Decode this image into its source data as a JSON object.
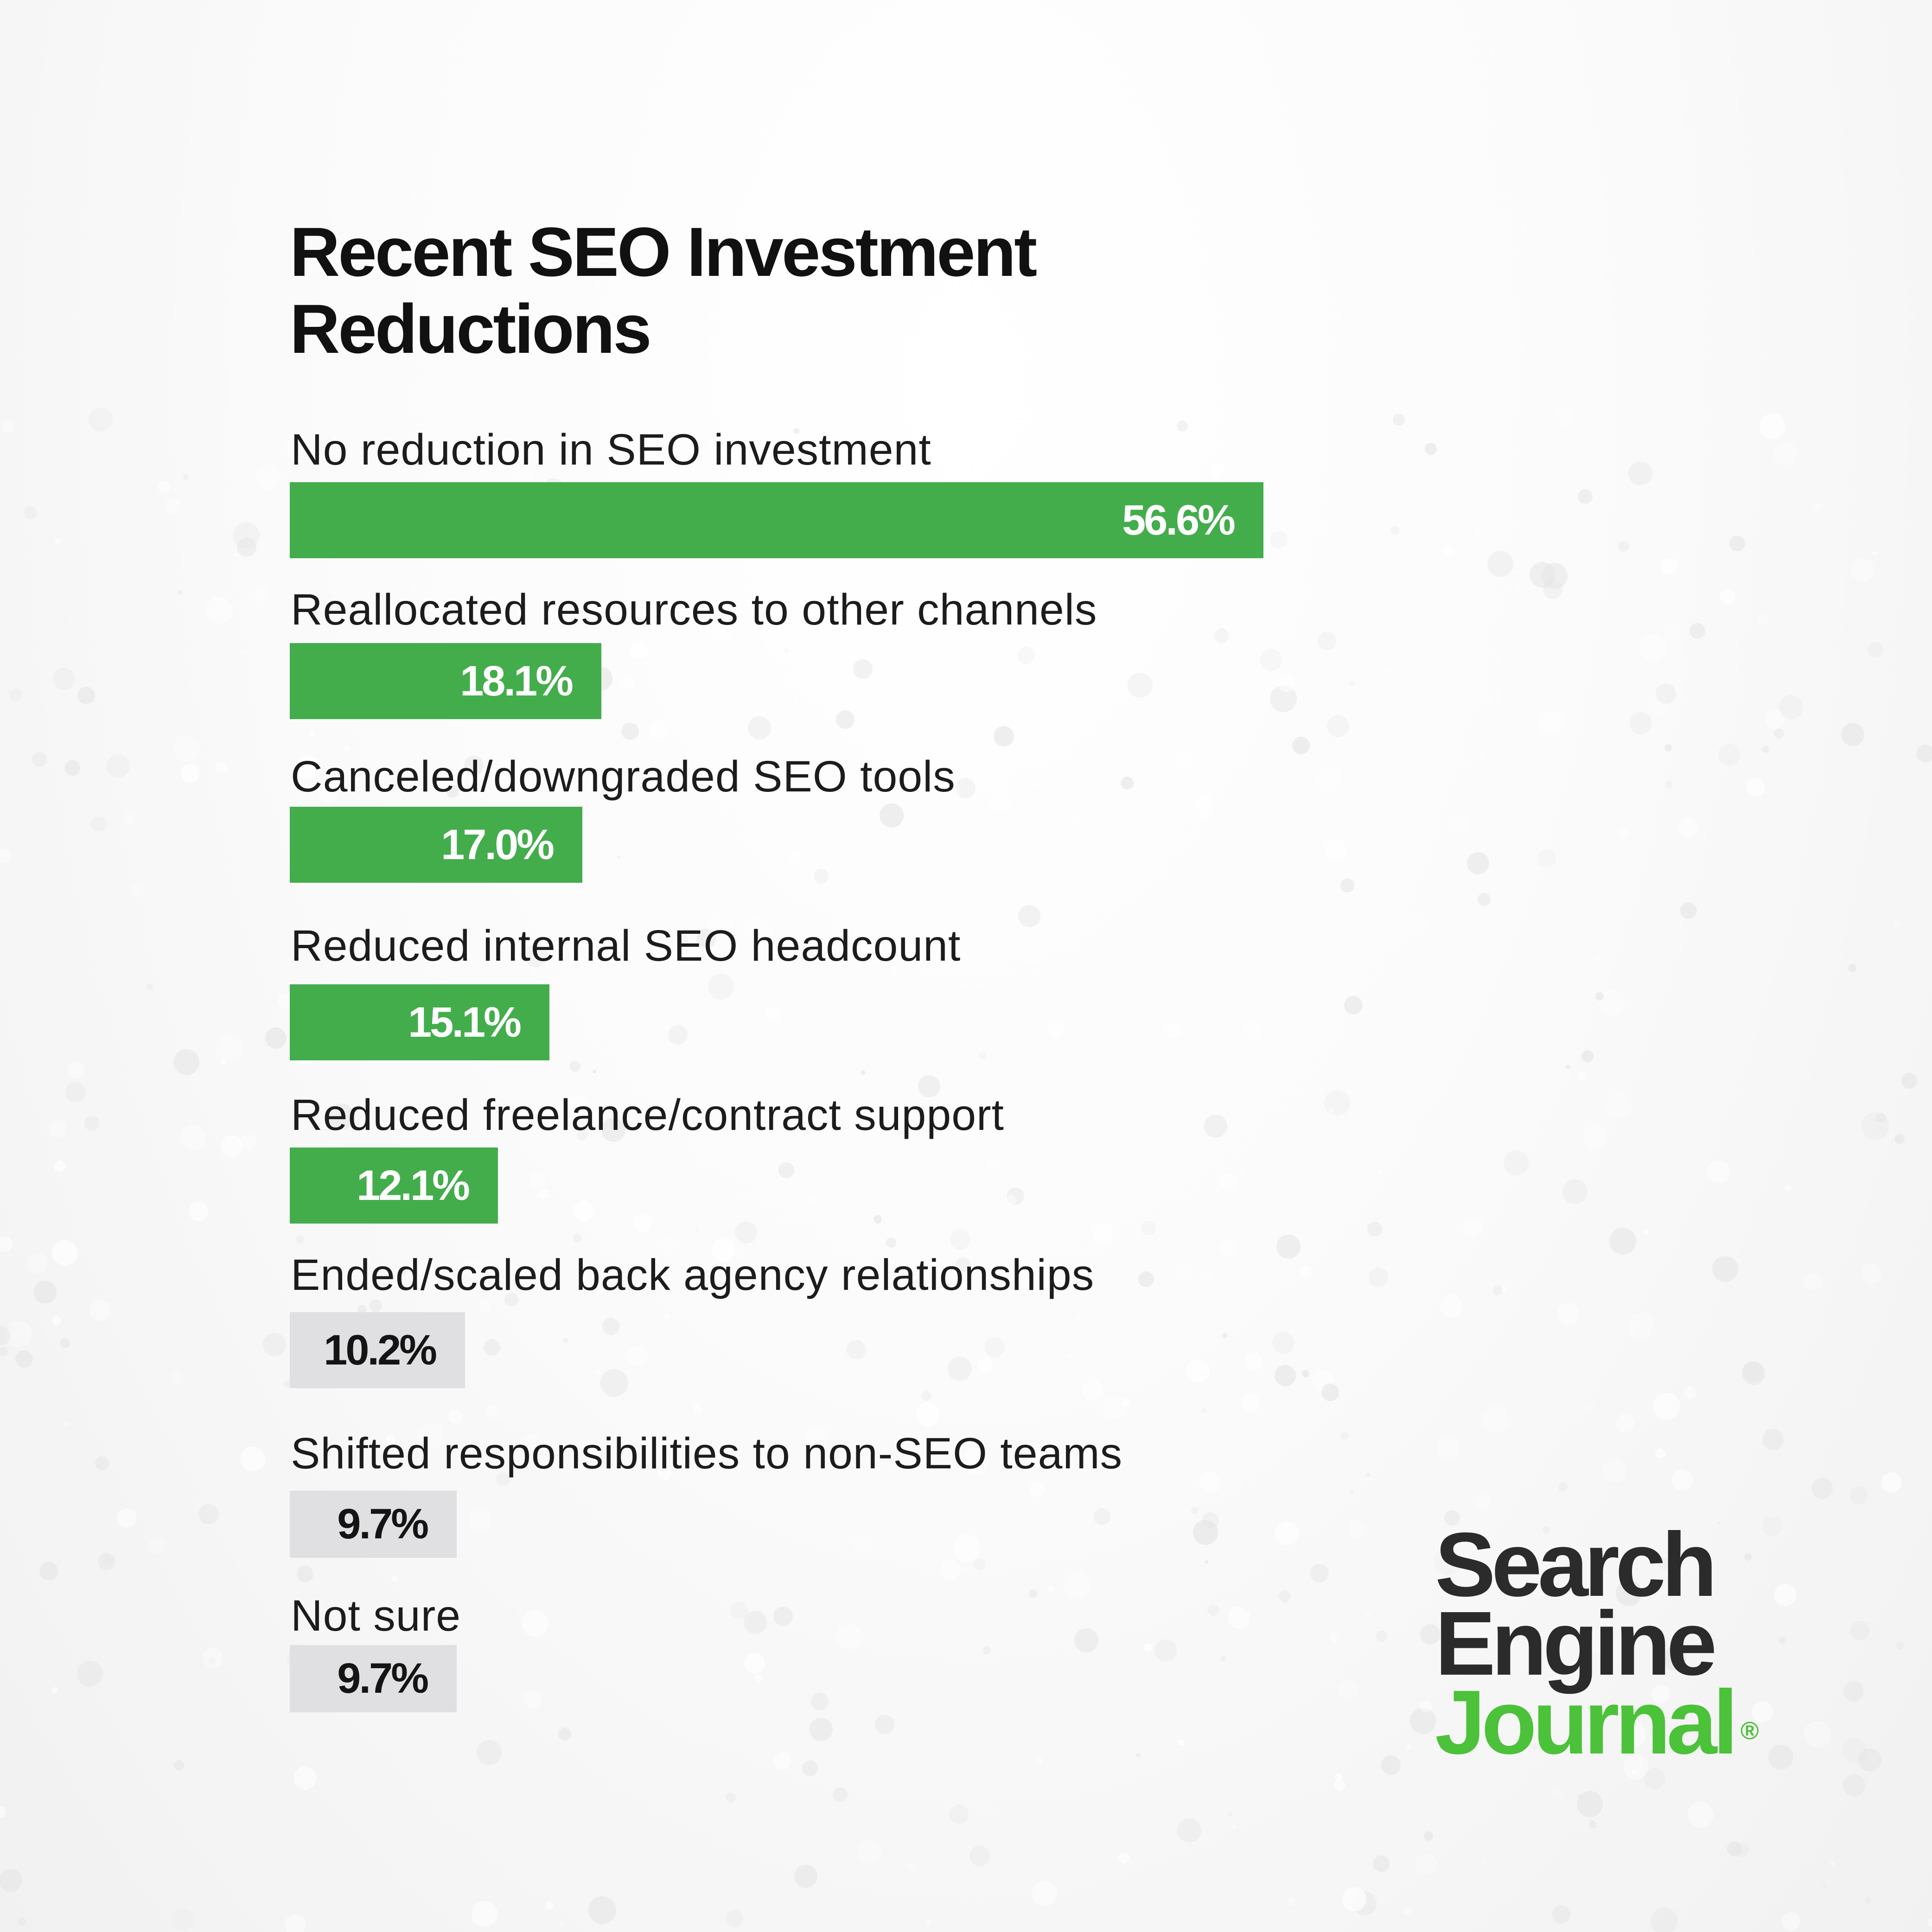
{
  "chart_data": {
    "type": "bar",
    "orientation": "horizontal",
    "title": "Recent SEO Investment Reductions",
    "categories": [
      "No reduction in SEO investment",
      "Reallocated resources to other channels",
      "Canceled/downgraded SEO tools",
      "Reduced internal SEO headcount",
      "Reduced freelance/contract support",
      "Ended/scaled back agency relationships",
      "Shifted responsibilities to non-SEO teams",
      "Not sure"
    ],
    "values": [
      56.6,
      18.1,
      17.0,
      15.1,
      12.1,
      10.2,
      9.7,
      9.7
    ],
    "value_labels": [
      "56.6%",
      "18.1%",
      "17.0%",
      "15.1%",
      "12.1%",
      "10.2%",
      "9.7%",
      "9.7%"
    ],
    "highlighted": [
      true,
      true,
      true,
      true,
      true,
      false,
      false,
      false
    ],
    "grid": false,
    "legend": "none"
  },
  "colors": {
    "highlight_bar": "#43ad4c",
    "muted_bar": "#e0e0e2",
    "highlight_text": "#ffffff",
    "muted_text": "#141414",
    "logo_dark": "#2b2b2b",
    "logo_green": "#4cc13a"
  },
  "logo": {
    "line1": "Search",
    "line2": "Engine",
    "line3": "Journal",
    "mark": "®"
  }
}
